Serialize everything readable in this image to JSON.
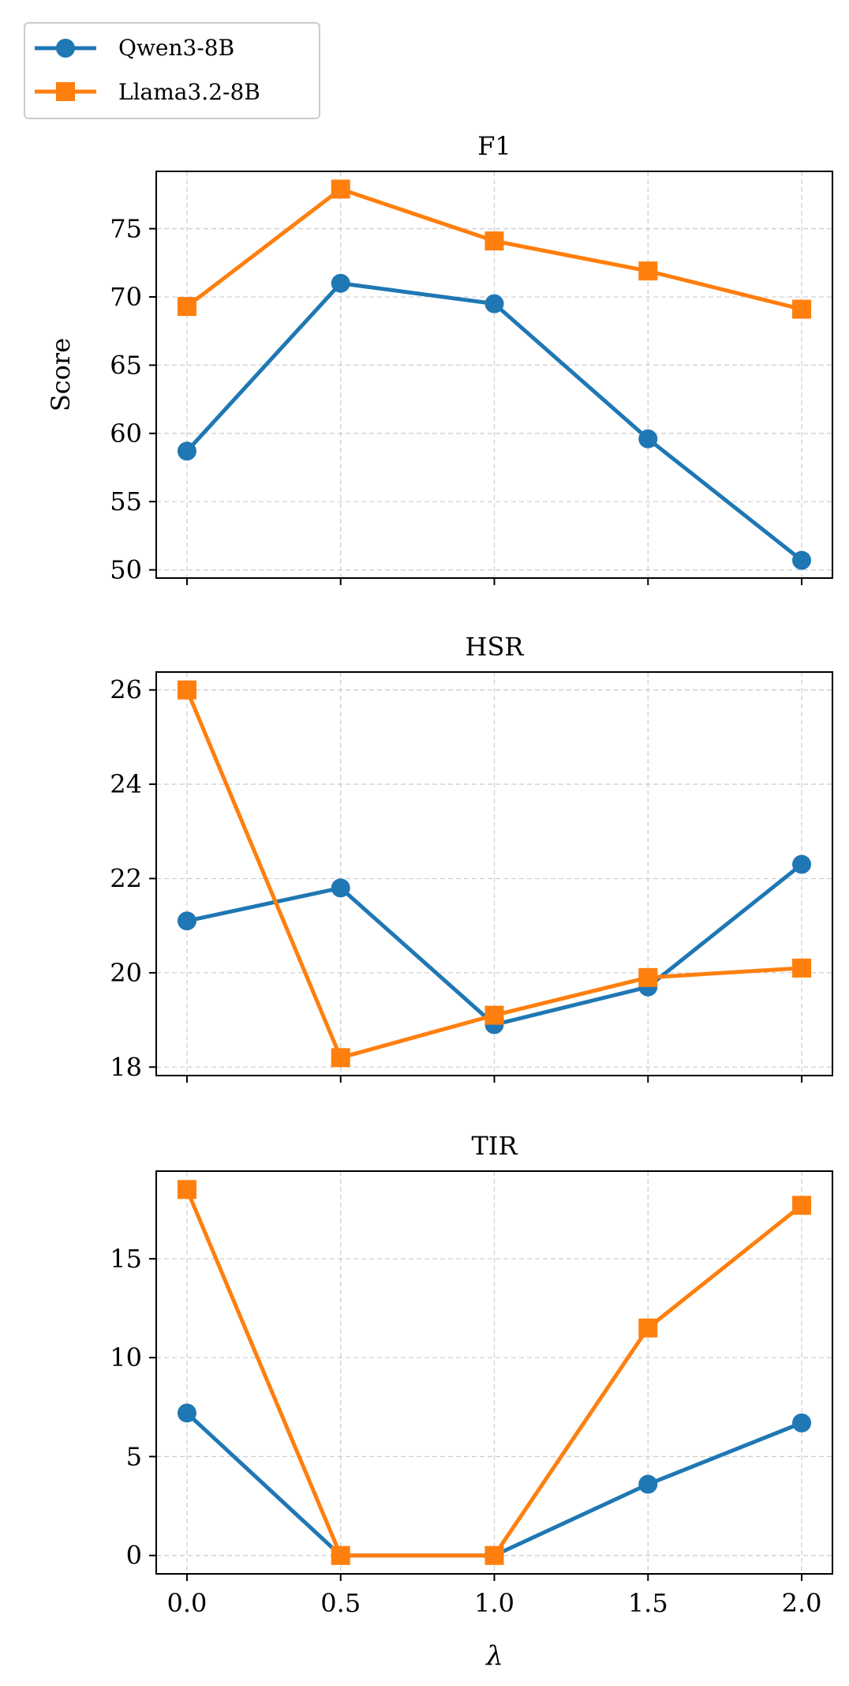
{
  "chart_data": {
    "type": "line",
    "x": [
      0.0,
      0.5,
      1.0,
      1.5,
      2.0
    ],
    "xticklabels": [
      "0.0",
      "0.5",
      "1.0",
      "1.5",
      "2.0"
    ],
    "xlabel": "λ",
    "xlim": [
      -0.1,
      2.1
    ],
    "legend": {
      "placement": "top-left",
      "entries": [
        {
          "name": "Qwen3-8B",
          "color": "#1f77b4",
          "marker": "circle"
        },
        {
          "name": "Llama3.2-8B",
          "color": "#ff7f0e",
          "marker": "square"
        }
      ]
    },
    "grid": true,
    "shared_x": true,
    "panels": [
      {
        "title": "F1",
        "ylabel": "Score",
        "ylim": [
          49.4,
          79.2
        ],
        "yticks": [
          50,
          55,
          60,
          65,
          70,
          75
        ],
        "series": [
          {
            "name": "Qwen3-8B",
            "values": [
              58.7,
              71.0,
              69.5,
              59.6,
              50.7
            ]
          },
          {
            "name": "Llama3.2-8B",
            "values": [
              69.3,
              77.9,
              74.1,
              71.9,
              69.1
            ]
          }
        ]
      },
      {
        "title": "HSR",
        "ylabel": "",
        "ylim": [
          17.82,
          26.38
        ],
        "yticks": [
          18,
          20,
          22,
          24,
          26
        ],
        "series": [
          {
            "name": "Qwen3-8B",
            "values": [
              21.1,
              21.8,
              18.9,
              19.7,
              22.3
            ]
          },
          {
            "name": "Llama3.2-8B",
            "values": [
              26.0,
              18.2,
              19.1,
              19.9,
              20.1
            ]
          }
        ]
      },
      {
        "title": "TIR",
        "ylabel": "",
        "ylim": [
          -0.93,
          19.43
        ],
        "yticks": [
          0,
          5,
          10,
          15
        ],
        "series": [
          {
            "name": "Qwen3-8B",
            "values": [
              7.2,
              0.0,
              0.0,
              3.6,
              6.7
            ]
          },
          {
            "name": "Llama3.2-8B",
            "values": [
              18.5,
              0.0,
              0.0,
              11.5,
              17.7
            ]
          }
        ]
      }
    ]
  }
}
